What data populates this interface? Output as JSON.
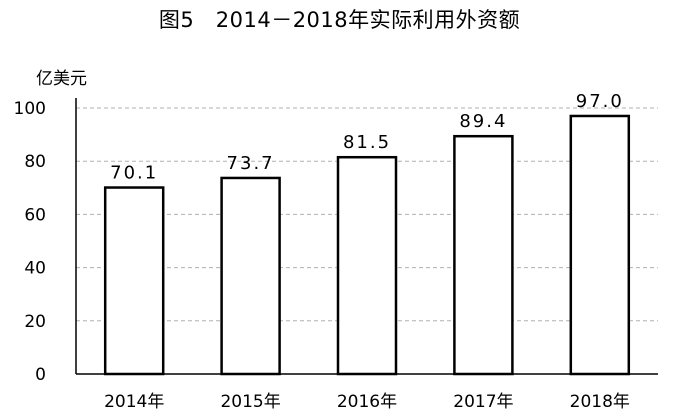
{
  "chart_data": {
    "type": "bar",
    "title": "图5   2014－2018年实际利用外资额",
    "unit": "亿美元",
    "categories": [
      "2014年",
      "2015年",
      "2016年",
      "2017年",
      "2018年"
    ],
    "values": [
      70.1,
      73.7,
      81.5,
      89.4,
      97.0
    ],
    "value_labels": [
      "70.1",
      "73.7",
      "81.5",
      "89.4",
      "97.0"
    ],
    "ylim": [
      0,
      100
    ],
    "yticks": [
      "0",
      "20",
      "40",
      "60",
      "80",
      "100"
    ],
    "grid": true,
    "legend": "none",
    "colors": {
      "bar_fill": "#ffffff",
      "bar_stroke": "#000000",
      "grid": "#b0b0b0",
      "axis": "#000000"
    }
  }
}
